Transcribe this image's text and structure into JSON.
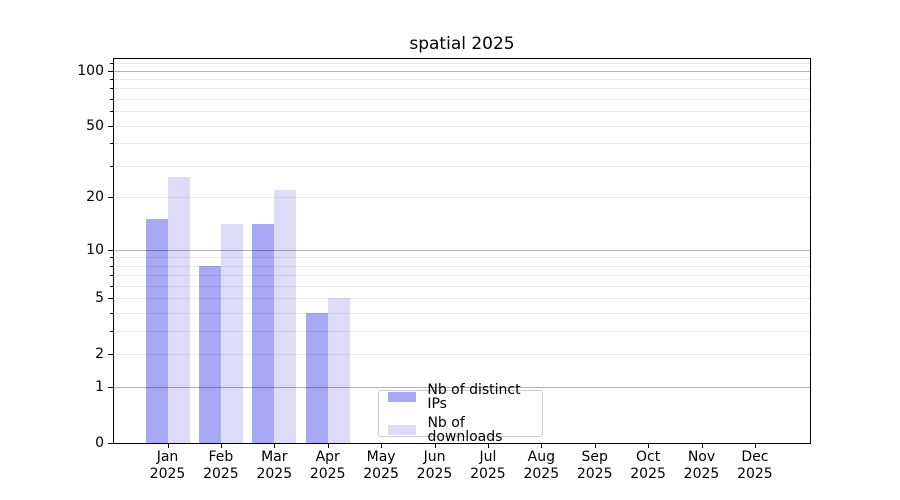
{
  "title": "spatial 2025",
  "chart_data": {
    "type": "bar",
    "title": "spatial 2025",
    "categories": [
      "Jan 2025",
      "Feb 2025",
      "Mar 2025",
      "Apr 2025",
      "May 2025",
      "Jun 2025",
      "Jul 2025",
      "Aug 2025",
      "Sep 2025",
      "Oct 2025",
      "Nov 2025",
      "Dec 2025"
    ],
    "series": [
      {
        "name": "Nb of distinct IPs",
        "color": "#a8a8f5",
        "values": [
          15,
          8,
          14,
          4,
          null,
          null,
          null,
          null,
          null,
          null,
          null,
          null
        ]
      },
      {
        "name": "Nb of downloads",
        "color": "#dcdcf9",
        "values": [
          26,
          14,
          22,
          5,
          null,
          null,
          null,
          null,
          null,
          null,
          null,
          null
        ]
      }
    ],
    "yscale": "log1p",
    "ylim": [
      0,
      116
    ],
    "ytick_values": [
      0,
      1,
      2,
      5,
      10,
      20,
      50,
      100
    ],
    "ytick_labels": [
      "0",
      "1",
      "2",
      "5",
      "10",
      "20",
      "50",
      "100"
    ],
    "minor_ytick_values": [
      3,
      4,
      6,
      7,
      8,
      9,
      30,
      40,
      60,
      70,
      80,
      90,
      110
    ],
    "gridlines_major": [
      1,
      10,
      100
    ],
    "gridlines_minor": [
      2,
      3,
      4,
      5,
      6,
      7,
      8,
      9,
      20,
      30,
      40,
      50,
      60,
      70,
      80,
      90,
      110
    ],
    "grid": "horizontal",
    "legend_position": "inside-bottom-center"
  },
  "legend": {
    "items": [
      {
        "label": "Nb of distinct IPs",
        "color": "#a8a8f5"
      },
      {
        "label": "Nb of downloads",
        "color": "#dcdcf9"
      }
    ]
  },
  "colors": {
    "grid_major": "#b3b3b3",
    "grid_minor": "#e9e9e9",
    "spine": "#000000",
    "background": "#ffffff"
  }
}
